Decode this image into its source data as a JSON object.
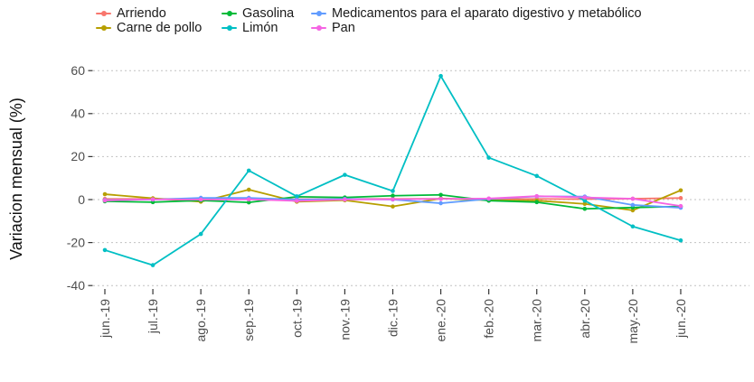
{
  "chart_data": {
    "type": "line",
    "title": "",
    "xlabel": "",
    "ylabel": "Variacion mensual (%)",
    "legend_position": "top",
    "grid": "horizontal-dotted",
    "x": [
      "jun.-19",
      "jul.-19",
      "ago.-19",
      "sep.-19",
      "oct.-19",
      "nov.-19",
      "dic.-19",
      "ene.-20",
      "feb.-20",
      "mar.-20",
      "abr.-20",
      "may.-20",
      "jun.-20"
    ],
    "yticks": [
      60,
      40,
      20,
      0,
      -20,
      -40
    ],
    "ylim": [
      -45,
      65
    ],
    "series": [
      {
        "name": "Arriendo",
        "color": "#F8766D",
        "values": [
          0.3,
          0.3,
          0.3,
          0.3,
          0.2,
          0.3,
          0.3,
          0.4,
          0.2,
          0.3,
          0.2,
          0.4,
          0.7
        ]
      },
      {
        "name": "Carne de pollo",
        "color": "#B79F00",
        "values": [
          2.5,
          0.6,
          -1.0,
          4.6,
          -1.0,
          -0.3,
          -3.2,
          0.5,
          -0.3,
          -0.5,
          -2.0,
          -5.0,
          4.3
        ]
      },
      {
        "name": "Gasolina",
        "color": "#00BA38",
        "values": [
          -0.8,
          -1.2,
          -0.4,
          -1.3,
          1.3,
          1.0,
          1.8,
          2.2,
          -0.5,
          -1.2,
          -4.3,
          -3.7,
          -3.2
        ]
      },
      {
        "name": "Limón",
        "color": "#00BFC4",
        "values": [
          -23.5,
          -30.5,
          -16.0,
          13.5,
          1.5,
          11.5,
          4.0,
          57.5,
          19.5,
          11.0,
          -0.5,
          -12.5,
          -19.0
        ]
      },
      {
        "name": "Medicamentos para el aparato digestivo y metabólico",
        "color": "#619CFF",
        "values": [
          -0.2,
          0.0,
          0.8,
          0.8,
          0.0,
          0.3,
          0.0,
          -1.7,
          0.3,
          1.5,
          1.4,
          -2.5,
          -3.8
        ]
      },
      {
        "name": "Pan",
        "color": "#F564E3",
        "values": [
          -0.4,
          0.1,
          0.0,
          0.1,
          -0.6,
          0.0,
          0.1,
          0.3,
          0.5,
          1.6,
          1.0,
          0.4,
          -3.0
        ]
      }
    ],
    "colors": {
      "grid": "#c2c2c2",
      "tick": "#333333",
      "tick_label": "#4d4d4d",
      "axis_title": "#111111"
    }
  }
}
